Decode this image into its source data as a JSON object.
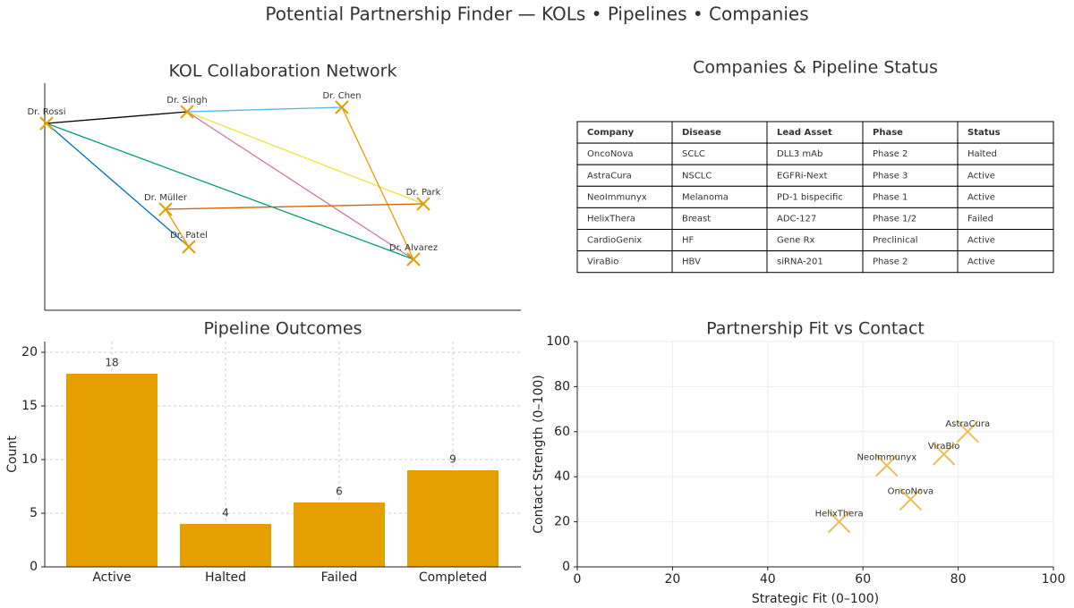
{
  "title": "Potential Partnership Finder — KOLs • Pipelines • Companies",
  "network": {
    "title": "KOL Collaboration Network",
    "nodes": [
      {
        "label": "Dr. Rossi"
      },
      {
        "label": "Dr. Singh"
      },
      {
        "label": "Dr. Chen"
      },
      {
        "label": "Dr. Müller"
      },
      {
        "label": "Dr. Patel"
      },
      {
        "label": "Dr. Park"
      },
      {
        "label": "Dr. Alvarez"
      }
    ]
  },
  "table": {
    "title": "Companies & Pipeline Status",
    "header": [
      "Company",
      "Disease",
      "Lead Asset",
      "Phase",
      "Status"
    ],
    "rows": [
      [
        "OncoNova",
        "SCLC",
        "DLL3 mAb",
        "Phase 2",
        "Halted"
      ],
      [
        "AstraCura",
        "NSCLC",
        "EGFRi-Next",
        "Phase 3",
        "Active"
      ],
      [
        "NeoImmunyx",
        "Melanoma",
        "PD-1 bispecific",
        "Phase 1",
        "Active"
      ],
      [
        "HelixThera",
        "Breast",
        "ADC-127",
        "Phase 1/2",
        "Failed"
      ],
      [
        "CardioGenix",
        "HF",
        "Gene Rx",
        "Preclinical",
        "Active"
      ],
      [
        "ViraBio",
        "HBV",
        "siRNA-201",
        "Phase 2",
        "Active"
      ]
    ]
  },
  "chart_data": [
    {
      "type": "bar",
      "title": "Pipeline Outcomes",
      "y_label": "Count",
      "categories": [
        "Active",
        "Halted",
        "Failed",
        "Completed"
      ],
      "values": [
        18,
        4,
        6,
        9
      ],
      "color": "#e69f00",
      "ylim": [
        0,
        21
      ],
      "yticks": [
        0,
        5,
        10,
        15,
        20
      ],
      "grid": true
    },
    {
      "type": "scatter",
      "title": "Partnership Fit vs Contact",
      "x_label": "Strategic Fit (0–100)",
      "y_label": "Contact Strength (0–100)",
      "labels": [
        "AstraCura",
        "ViraBio",
        "NeoImmunyx",
        "OncoNova",
        "HelixThera"
      ],
      "x": [
        82,
        77,
        65,
        70,
        55
      ],
      "values": [
        60,
        50,
        45,
        30,
        20
      ],
      "color": "#ebbd55",
      "xlim": [
        0,
        100
      ],
      "ylim": [
        0,
        100
      ],
      "xticks": [
        0,
        20,
        40,
        60,
        80,
        100
      ],
      "yticks": [
        0,
        20,
        40,
        60,
        80,
        100
      ],
      "grid": true
    }
  ]
}
